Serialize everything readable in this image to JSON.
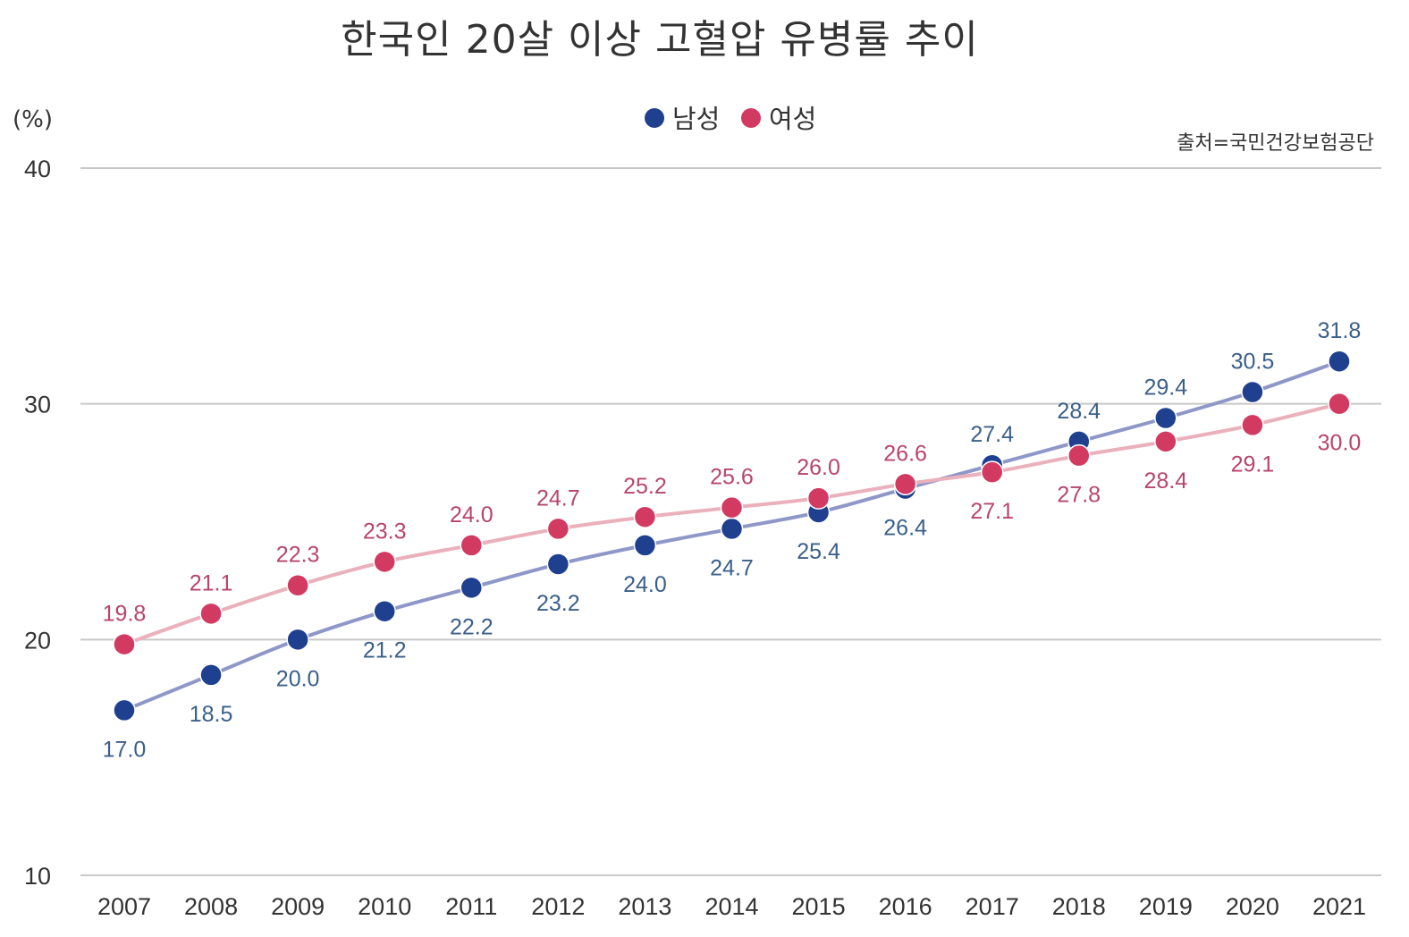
{
  "chart_data": {
    "type": "line",
    "title": "한국인 20살 이상 고혈압 유병률 추이",
    "ylabel": "(%)",
    "source": "출처=국민건강보험공단",
    "ylim": [
      10,
      40
    ],
    "yticks": [
      10,
      20,
      30,
      40
    ],
    "categories": [
      "2007",
      "2008",
      "2009",
      "2010",
      "2011",
      "2012",
      "2013",
      "2014",
      "2015",
      "2016",
      "2017",
      "2018",
      "2019",
      "2020",
      "2021"
    ],
    "series": [
      {
        "name": "남성",
        "color": "#1f3f8f",
        "line_color": "#8e98c8",
        "label_color": "#3a5f8a",
        "values": [
          17.0,
          18.5,
          20.0,
          21.2,
          22.2,
          23.2,
          24.0,
          24.7,
          25.4,
          26.4,
          27.4,
          28.4,
          29.4,
          30.5,
          31.8
        ],
        "labels": [
          "17.0",
          "18.5",
          "20.0",
          "21.2",
          "22.2",
          "23.2",
          "24.0",
          "24.7",
          "25.4",
          "26.4",
          "27.4",
          "28.4",
          "29.4",
          "30.5",
          "31.8"
        ],
        "label_pos": [
          "below",
          "below",
          "below",
          "below",
          "below",
          "below",
          "below",
          "below",
          "below",
          "below",
          "above",
          "above",
          "above",
          "above",
          "above"
        ]
      },
      {
        "name": "여성",
        "color": "#d23a62",
        "line_color": "#eab0bb",
        "label_color": "#b8456a",
        "values": [
          19.8,
          21.1,
          22.3,
          23.3,
          24.0,
          24.7,
          25.2,
          25.6,
          26.0,
          26.6,
          27.1,
          27.8,
          28.4,
          29.1,
          30.0
        ],
        "labels": [
          "19.8",
          "21.1",
          "22.3",
          "23.3",
          "24.0",
          "24.7",
          "25.2",
          "25.6",
          "26.0",
          "26.6",
          "27.1",
          "27.8",
          "28.4",
          "29.1",
          "30.0"
        ],
        "label_pos": [
          "above",
          "above",
          "above",
          "above",
          "above",
          "above",
          "above",
          "above",
          "above",
          "above",
          "below",
          "below",
          "below",
          "below",
          "below"
        ]
      }
    ],
    "legend": [
      "남성",
      "여성"
    ]
  }
}
